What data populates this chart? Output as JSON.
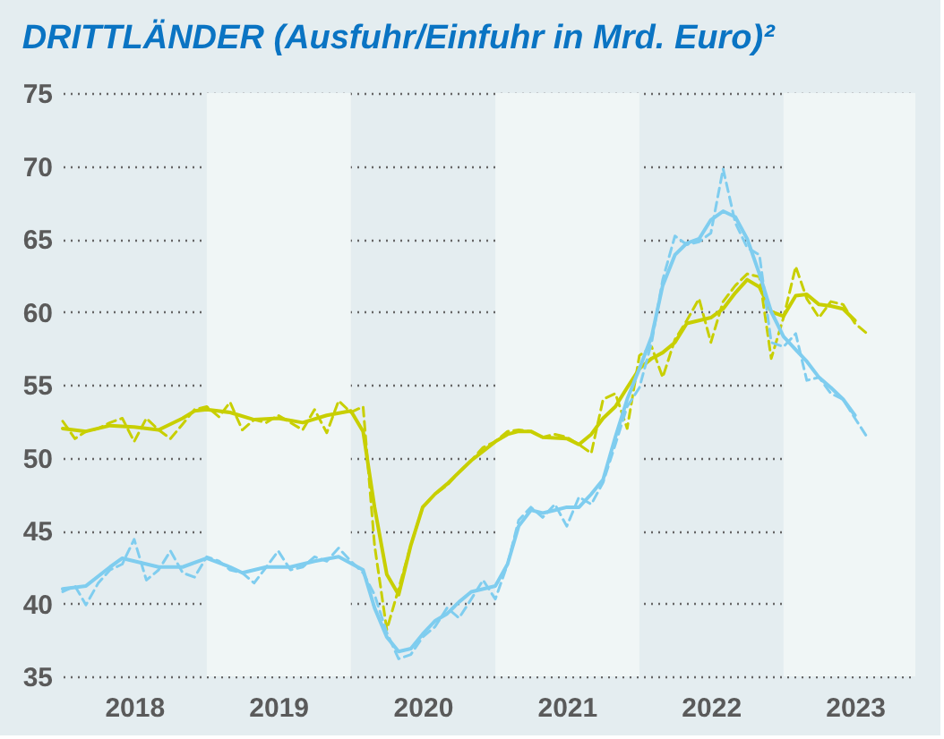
{
  "chart_data": {
    "type": "line",
    "title": "DRITTLÄNDER (Ausfuhr/Einfuhr in Mrd. Euro)²",
    "xlim": [
      "2018-01",
      "2023-12"
    ],
    "ylim": [
      35,
      75
    ],
    "yticks": [
      35,
      40,
      45,
      50,
      55,
      60,
      65,
      70,
      75
    ],
    "xticks": [
      {
        "value": "2018-07",
        "label": "2018"
      },
      {
        "value": "2019-07",
        "label": "2019"
      },
      {
        "value": "2020-07",
        "label": "2020"
      },
      {
        "value": "2021-07",
        "label": "2021"
      },
      {
        "value": "2022-07",
        "label": "2022"
      },
      {
        "value": "2023-07",
        "label": "2023"
      }
    ],
    "grid": "y",
    "bands": [
      {
        "axis": "x",
        "from": "2019-01",
        "to": "2020-01",
        "color": "#f0f6f6"
      },
      {
        "axis": "x",
        "from": "2021-01",
        "to": "2022-01",
        "color": "#f0f6f6"
      },
      {
        "axis": "x",
        "from": "2023-01",
        "to": "2023-12",
        "color": "#f0f6f6"
      }
    ],
    "series": [
      {
        "color": "#c8cf00",
        "line_style": "dashed",
        "x": [
          "2018-01",
          "2018-02",
          "2018-03",
          "2018-04",
          "2018-05",
          "2018-06",
          "2018-07",
          "2018-08",
          "2018-09",
          "2018-10",
          "2018-11",
          "2018-12",
          "2019-01",
          "2019-02",
          "2019-03",
          "2019-04",
          "2019-05",
          "2019-06",
          "2019-07",
          "2019-08",
          "2019-09",
          "2019-10",
          "2019-11",
          "2019-12",
          "2020-01",
          "2020-02",
          "2020-03",
          "2020-04",
          "2020-05",
          "2020-06",
          "2020-07",
          "2020-08",
          "2020-09",
          "2020-10",
          "2020-11",
          "2020-12",
          "2021-01",
          "2021-02",
          "2021-03",
          "2021-04",
          "2021-05",
          "2021-06",
          "2021-07",
          "2021-08",
          "2021-09",
          "2021-10",
          "2021-11",
          "2021-12",
          "2022-01",
          "2022-02",
          "2022-03",
          "2022-04",
          "2022-05",
          "2022-06",
          "2022-07",
          "2022-08",
          "2022-09",
          "2022-10",
          "2022-11",
          "2022-12",
          "2023-01",
          "2023-02",
          "2023-03",
          "2023-04",
          "2023-05",
          "2023-06",
          "2023-07",
          "2023-08"
        ],
        "values": [
          52.5,
          51.3,
          51.8,
          52.0,
          52.4,
          52.7,
          51.1,
          52.7,
          51.9,
          51.3,
          52.3,
          53.3,
          53.5,
          52.8,
          53.8,
          51.9,
          52.6,
          52.4,
          52.9,
          52.4,
          51.9,
          53.3,
          51.7,
          53.9,
          53.1,
          53.5,
          44.0,
          38.2,
          41.0,
          44.0,
          46.6,
          47.5,
          48.1,
          49.0,
          49.8,
          50.7,
          51.1,
          51.8,
          51.9,
          51.8,
          51.4,
          51.6,
          51.4,
          50.9,
          50.3,
          54.0,
          54.4,
          52.0,
          57.0,
          57.6,
          55.5,
          58.1,
          59.4,
          60.9,
          57.9,
          60.7,
          61.8,
          62.6,
          62.4,
          56.8,
          59.6,
          63.1,
          60.9,
          59.6,
          60.7,
          60.5,
          59.2,
          58.5
        ]
      },
      {
        "color": "#c8cf00",
        "line_style": "solid",
        "x": [
          "2018-01",
          "2018-03",
          "2018-05",
          "2018-07",
          "2018-09",
          "2018-11",
          "2018-12",
          "2019-01",
          "2019-03",
          "2019-05",
          "2019-07",
          "2019-09",
          "2019-11",
          "2020-01",
          "2020-02",
          "2020-03",
          "2020-04",
          "2020-05",
          "2020-06",
          "2020-07",
          "2020-08",
          "2020-09",
          "2020-10",
          "2020-11",
          "2021-01",
          "2021-02",
          "2021-03",
          "2021-04",
          "2021-05",
          "2021-07",
          "2021-08",
          "2021-09",
          "2021-10",
          "2021-11",
          "2021-12",
          "2022-01",
          "2022-02",
          "2022-03",
          "2022-04",
          "2022-05",
          "2022-06",
          "2022-07",
          "2022-08",
          "2022-09",
          "2022-10",
          "2022-11",
          "2022-12",
          "2023-01",
          "2023-02",
          "2023-03",
          "2023-04",
          "2023-05",
          "2023-06",
          "2023-07"
        ],
        "values": [
          52.0,
          51.8,
          52.2,
          52.1,
          51.9,
          52.7,
          53.2,
          53.3,
          53.1,
          52.6,
          52.7,
          52.4,
          52.9,
          53.2,
          51.8,
          46.6,
          42.0,
          40.6,
          44.0,
          46.6,
          47.5,
          48.2,
          49.0,
          49.8,
          51.1,
          51.6,
          51.8,
          51.8,
          51.4,
          51.3,
          50.9,
          51.6,
          52.7,
          53.5,
          54.8,
          56.1,
          56.8,
          57.2,
          57.9,
          59.2,
          59.4,
          59.6,
          60.2,
          61.3,
          62.2,
          61.7,
          60.0,
          59.7,
          61.1,
          61.2,
          60.5,
          60.4,
          60.2,
          59.4
        ]
      },
      {
        "color": "#7fcdef",
        "line_style": "dashed",
        "x": [
          "2018-01",
          "2018-02",
          "2018-03",
          "2018-04",
          "2018-05",
          "2018-06",
          "2018-07",
          "2018-08",
          "2018-09",
          "2018-10",
          "2018-11",
          "2018-12",
          "2019-01",
          "2019-02",
          "2019-03",
          "2019-04",
          "2019-05",
          "2019-06",
          "2019-07",
          "2019-08",
          "2019-09",
          "2019-10",
          "2019-11",
          "2019-12",
          "2020-01",
          "2020-02",
          "2020-03",
          "2020-04",
          "2020-05",
          "2020-06",
          "2020-07",
          "2020-08",
          "2020-09",
          "2020-10",
          "2020-11",
          "2020-12",
          "2021-01",
          "2021-02",
          "2021-03",
          "2021-04",
          "2021-05",
          "2021-06",
          "2021-07",
          "2021-08",
          "2021-09",
          "2021-10",
          "2021-11",
          "2021-12",
          "2022-01",
          "2022-02",
          "2022-03",
          "2022-04",
          "2022-05",
          "2022-06",
          "2022-07",
          "2022-08",
          "2022-09",
          "2022-10",
          "2022-11",
          "2022-12",
          "2023-01",
          "2023-02",
          "2023-03",
          "2023-04",
          "2023-05",
          "2023-06",
          "2023-07",
          "2023-08"
        ],
        "values": [
          40.8,
          41.2,
          39.9,
          41.4,
          42.3,
          42.7,
          44.4,
          41.6,
          42.3,
          43.6,
          42.1,
          41.8,
          43.2,
          42.9,
          42.3,
          42.1,
          41.4,
          42.5,
          43.6,
          42.3,
          42.5,
          43.2,
          42.9,
          43.8,
          42.9,
          42.1,
          40.6,
          38.0,
          36.2,
          36.5,
          37.7,
          38.4,
          39.7,
          39.0,
          40.3,
          41.6,
          40.3,
          42.7,
          45.7,
          46.6,
          45.9,
          46.8,
          45.3,
          47.3,
          46.8,
          48.3,
          50.9,
          53.5,
          54.8,
          57.9,
          62.2,
          65.2,
          64.6,
          64.8,
          65.4,
          69.8,
          66.1,
          64.4,
          63.9,
          57.9,
          57.6,
          58.5,
          55.3,
          55.5,
          54.4,
          54.0,
          52.7,
          51.4
        ]
      },
      {
        "color": "#7fcdef",
        "line_style": "solid",
        "x": [
          "2018-01",
          "2018-03",
          "2018-05",
          "2018-06",
          "2018-09",
          "2018-11",
          "2019-01",
          "2019-03",
          "2019-04",
          "2019-06",
          "2019-08",
          "2019-10",
          "2019-12",
          "2020-02",
          "2020-03",
          "2020-04",
          "2020-05",
          "2020-06",
          "2020-07",
          "2020-08",
          "2020-09",
          "2020-10",
          "2020-11",
          "2021-01",
          "2021-02",
          "2021-03",
          "2021-04",
          "2021-05",
          "2021-06",
          "2021-07",
          "2021-08",
          "2021-09",
          "2021-10",
          "2021-11",
          "2021-12",
          "2022-01",
          "2022-02",
          "2022-03",
          "2022-04",
          "2022-05",
          "2022-06",
          "2022-07",
          "2022-08",
          "2022-09",
          "2022-10",
          "2022-11",
          "2022-12",
          "2023-01",
          "2023-02",
          "2023-03",
          "2023-04",
          "2023-05",
          "2023-06",
          "2023-07"
        ],
        "values": [
          41.0,
          41.2,
          42.5,
          43.1,
          42.5,
          42.5,
          43.1,
          42.5,
          42.1,
          42.5,
          42.5,
          42.9,
          43.2,
          42.3,
          39.7,
          37.7,
          36.7,
          36.9,
          37.9,
          38.8,
          39.3,
          40.1,
          40.8,
          41.2,
          42.7,
          45.3,
          46.4,
          46.2,
          46.4,
          46.6,
          46.6,
          47.5,
          48.5,
          51.4,
          54.0,
          56.1,
          58.3,
          61.8,
          63.9,
          64.7,
          65.0,
          66.3,
          66.9,
          66.5,
          65.0,
          62.6,
          60.0,
          58.3,
          57.4,
          56.6,
          55.5,
          54.8,
          54.0,
          52.9
        ]
      }
    ]
  }
}
